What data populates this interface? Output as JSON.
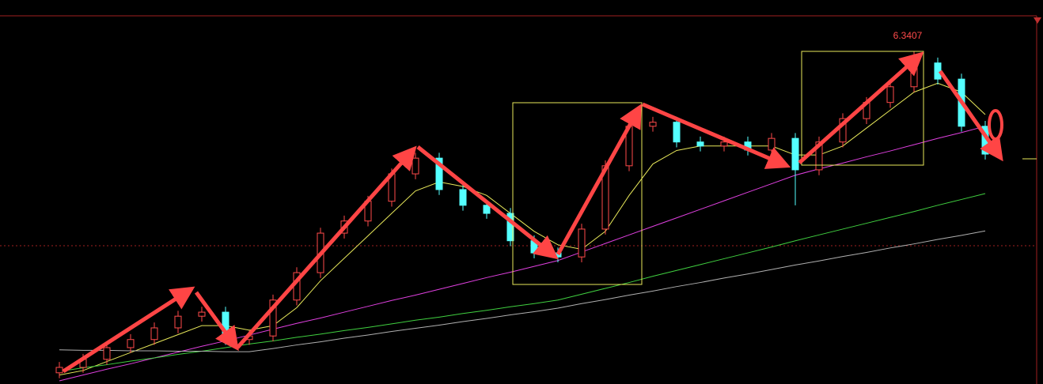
{
  "chart_data": {
    "type": "candlestick",
    "open": [
      5.625,
      5.637,
      5.655,
      5.681,
      5.699,
      5.725,
      5.751,
      5.76,
      5.699,
      5.707,
      5.787,
      5.848,
      5.936,
      5.963,
      6.007,
      6.068,
      6.103,
      6.033,
      5.998,
      5.98,
      5.919,
      5.892,
      5.883,
      5.945,
      6.086,
      6.174,
      6.183,
      6.139,
      6.13,
      6.139,
      6.121,
      6.147,
      6.077,
      6.139,
      6.191,
      6.227,
      6.262,
      6.315,
      6.279,
      6.174
    ],
    "high": [
      5.649,
      5.667,
      5.693,
      5.711,
      5.737,
      5.763,
      5.772,
      5.772,
      5.719,
      5.799,
      5.86,
      5.948,
      5.975,
      6.019,
      6.08,
      6.115,
      6.115,
      6.045,
      6.01,
      5.992,
      5.931,
      5.904,
      5.957,
      6.098,
      6.186,
      6.195,
      6.195,
      6.151,
      6.151,
      6.151,
      6.159,
      6.159,
      6.151,
      6.203,
      6.239,
      6.274,
      6.3407,
      6.327,
      6.291,
      6.186
    ],
    "low": [
      5.613,
      5.625,
      5.643,
      5.669,
      5.687,
      5.713,
      5.739,
      5.687,
      5.687,
      5.695,
      5.775,
      5.836,
      5.924,
      5.951,
      5.995,
      6.056,
      6.021,
      5.986,
      5.968,
      5.907,
      5.88,
      5.871,
      5.871,
      5.933,
      6.074,
      6.162,
      6.127,
      6.118,
      6.118,
      6.109,
      6.109,
      5.998,
      6.065,
      6.127,
      6.179,
      6.215,
      6.25,
      6.267,
      6.162,
      6.1
    ],
    "close": [
      5.637,
      5.655,
      5.681,
      5.699,
      5.725,
      5.751,
      5.76,
      5.699,
      5.707,
      5.787,
      5.848,
      5.936,
      5.963,
      6.007,
      6.068,
      6.103,
      6.033,
      5.998,
      5.98,
      5.919,
      5.892,
      5.883,
      5.945,
      6.086,
      6.174,
      6.183,
      6.139,
      6.13,
      6.139,
      6.121,
      6.147,
      6.077,
      6.139,
      6.191,
      6.227,
      6.262,
      6.315,
      6.279,
      6.174,
      6.112
    ],
    "up_color": "#ff4a4a",
    "down_color": "#54ffff",
    "lines": [
      {
        "color": "#e8e85a",
        "values": [
          5.62,
          5.63,
          5.65,
          5.67,
          5.69,
          5.71,
          5.73,
          5.73,
          5.72,
          5.73,
          5.77,
          5.83,
          5.88,
          5.93,
          5.98,
          6.03,
          6.05,
          6.04,
          6.02,
          5.98,
          5.94,
          5.91,
          5.9,
          5.94,
          6.02,
          6.09,
          6.12,
          6.13,
          6.13,
          6.13,
          6.13,
          6.11,
          6.11,
          6.13,
          6.17,
          6.21,
          6.25,
          6.27,
          6.25,
          6.2
        ]
      },
      {
        "color": "#e040e0",
        "values": [
          5.607,
          5.62,
          5.633,
          5.645,
          5.658,
          5.671,
          5.684,
          5.696,
          5.709,
          5.722,
          5.735,
          5.747,
          5.76,
          5.773,
          5.786,
          5.798,
          5.811,
          5.824,
          5.837,
          5.849,
          5.862,
          5.875,
          5.894,
          5.913,
          5.932,
          5.951,
          5.97,
          5.989,
          6.008,
          6.027,
          6.046,
          6.065,
          6.079,
          6.092,
          6.106,
          6.119,
          6.133,
          6.147,
          6.16,
          6.174
        ]
      },
      {
        "color": "#40d040",
        "values": [
          5.628,
          5.636,
          5.643,
          5.651,
          5.658,
          5.666,
          5.673,
          5.681,
          5.689,
          5.696,
          5.704,
          5.711,
          5.719,
          5.726,
          5.734,
          5.742,
          5.749,
          5.757,
          5.764,
          5.772,
          5.779,
          5.787,
          5.8,
          5.813,
          5.826,
          5.84,
          5.853,
          5.866,
          5.879,
          5.892,
          5.905,
          5.919,
          5.932,
          5.945,
          5.958,
          5.971,
          5.984,
          5.998,
          6.011,
          6.024
        ]
      },
      {
        "color": "#b0b0b0",
        "values": [
          5.676,
          5.675,
          5.675,
          5.674,
          5.674,
          5.673,
          5.673,
          5.672,
          5.672,
          5.679,
          5.687,
          5.694,
          5.702,
          5.709,
          5.717,
          5.724,
          5.731,
          5.739,
          5.746,
          5.754,
          5.761,
          5.769,
          5.779,
          5.788,
          5.798,
          5.807,
          5.817,
          5.826,
          5.836,
          5.845,
          5.855,
          5.865,
          5.874,
          5.884,
          5.893,
          5.903,
          5.912,
          5.922,
          5.931,
          5.941
        ]
      }
    ],
    "ylim": [
      5.6,
      6.42
    ]
  }
}
